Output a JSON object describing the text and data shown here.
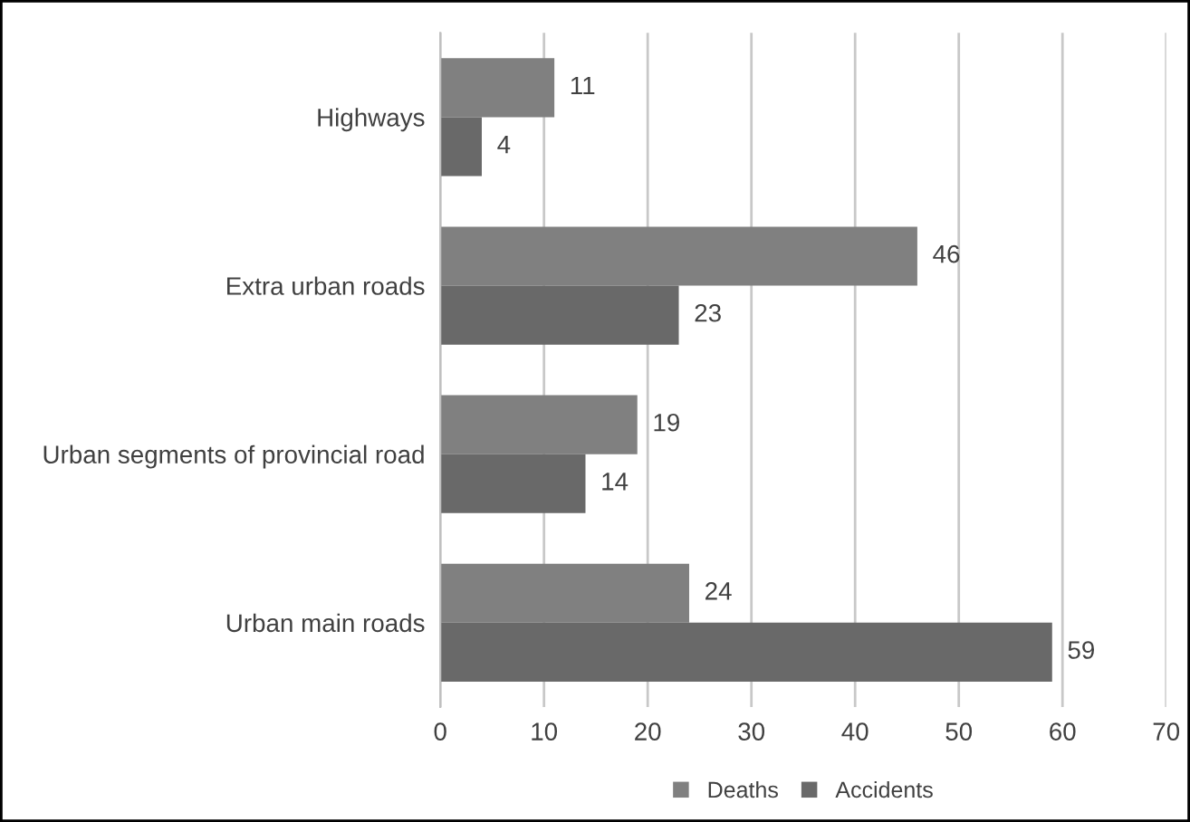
{
  "chart_data": {
    "type": "bar",
    "orientation": "horizontal",
    "categories": [
      "Highways",
      "Extra urban roads",
      "Urban segments of provincial road",
      "Urban main roads"
    ],
    "series": [
      {
        "name": "Deaths",
        "color": "#808080",
        "values": [
          11,
          46,
          19,
          24
        ]
      },
      {
        "name": "Accidents",
        "color": "#696969",
        "values": [
          4,
          23,
          14,
          59
        ]
      }
    ],
    "xlim": [
      0,
      70
    ],
    "xticks": [
      0,
      10,
      20,
      30,
      40,
      50,
      60,
      70
    ],
    "grid": "x",
    "legend": "bottom",
    "data_labels": true
  }
}
